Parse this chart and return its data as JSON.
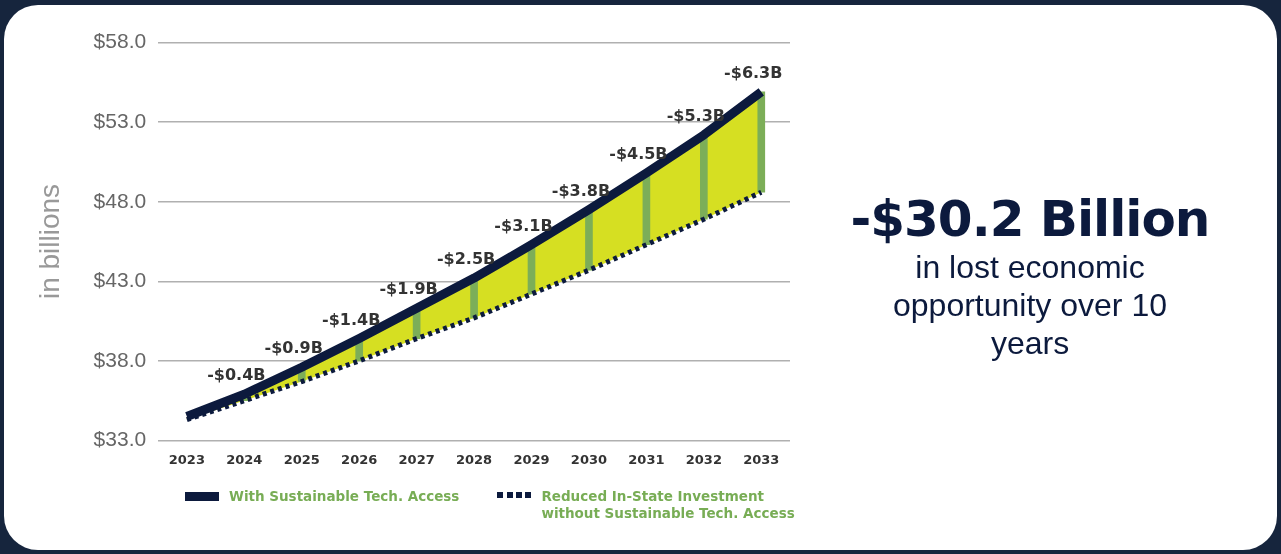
{
  "chart_data": {
    "type": "line",
    "ylabel": "in billions",
    "categories": [
      "2023",
      "2024",
      "2025",
      "2026",
      "2027",
      "2028",
      "2029",
      "2030",
      "2031",
      "2032",
      "2033"
    ],
    "series": [
      {
        "name": "With Sustainable Tech. Access",
        "color": "#0c1a3d",
        "line_style": "solid",
        "values": [
          34.5,
          35.9,
          37.6,
          39.4,
          41.3,
          43.2,
          45.3,
          47.5,
          49.8,
          52.2,
          54.9
        ],
        "lower": [
          34.3,
          35.5,
          36.7,
          38.0,
          39.4,
          40.7,
          42.2,
          43.7,
          45.3,
          46.9,
          48.6
        ],
        "upper": [
          34.5,
          35.9,
          37.6,
          39.4,
          41.3,
          43.2,
          45.3,
          47.5,
          49.8,
          52.2,
          54.9
        ]
      },
      {
        "name": "Reduced In-State Investment without Sustainable Tech. Access",
        "color": "#0c1a3d",
        "line_style": "dotted",
        "values": [
          34.3,
          35.5,
          36.7,
          38.0,
          39.4,
          40.7,
          42.2,
          43.7,
          45.3,
          46.9,
          48.6
        ]
      },
      {
        "type": "bar",
        "color": "#7cae58",
        "base": [
          null,
          35.9,
          37.6,
          39.4,
          41.3,
          43.2,
          45.3,
          47.5,
          49.8,
          52.2,
          54.9
        ],
        "values": [
          null,
          -0.4,
          -0.9,
          -1.4,
          -1.9,
          -2.5,
          -3.1,
          -3.8,
          -4.5,
          -5.3,
          -6.3
        ],
        "value_labels": [
          null,
          "-$0.4B",
          "-$0.9B",
          "-$1.4B",
          "-$1.9B",
          "-$2.5B",
          "-$3.1B",
          "-$3.8B",
          "-$4.5B",
          "-$5.3B",
          "-$6.3B"
        ]
      }
    ],
    "ylim": [
      33,
      58
    ],
    "yticks": [
      {
        "value": 33,
        "label": "$33.0"
      },
      {
        "value": 38,
        "label": "$38.0"
      },
      {
        "value": 43,
        "label": "$43.0"
      },
      {
        "value": 48,
        "label": "$48.0"
      },
      {
        "value": 53,
        "label": "$53.0"
      },
      {
        "value": 58,
        "label": "$58.0"
      }
    ],
    "grid": "y",
    "legend": "bottom",
    "marker": "none",
    "annotations": [
      "-$30.2 Billion",
      "in lost economic opportunity over 10 years"
    ]
  }
}
